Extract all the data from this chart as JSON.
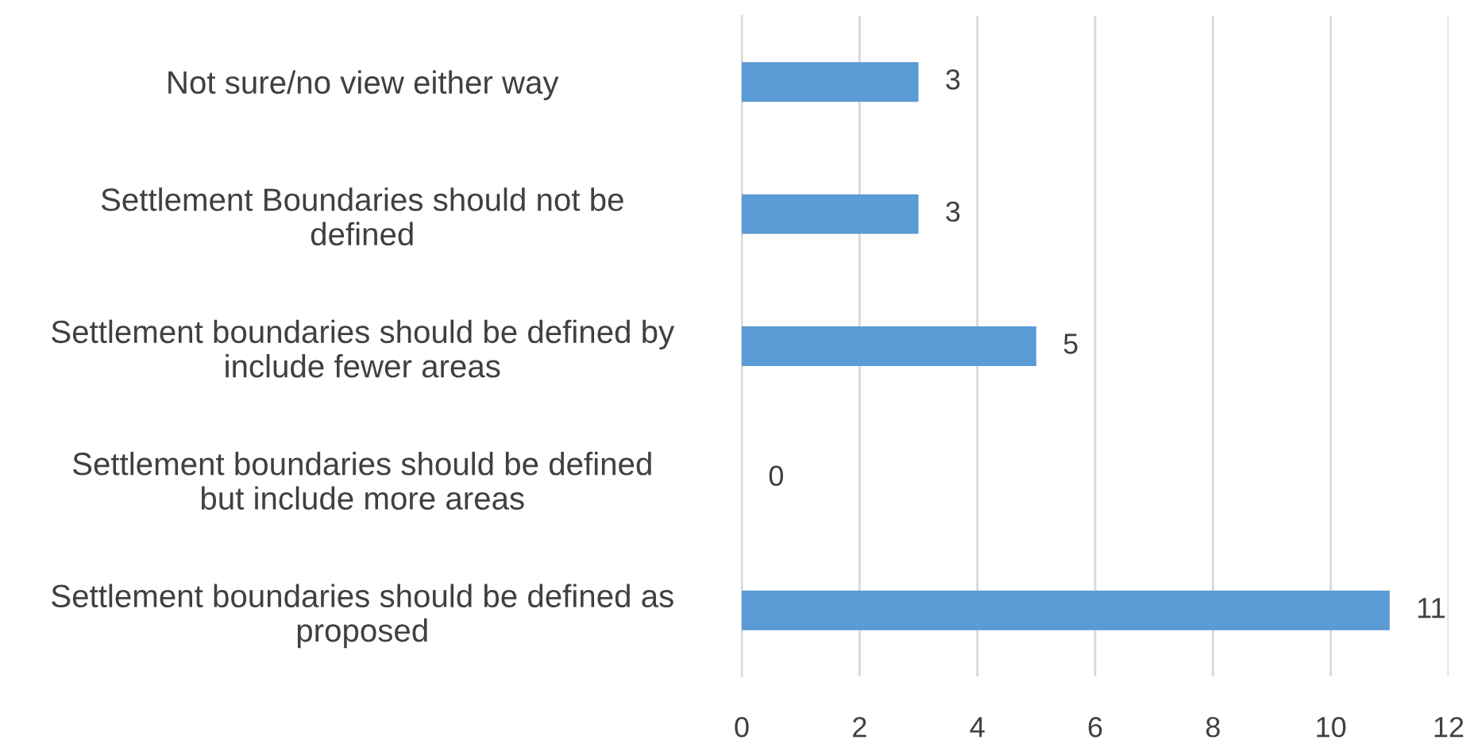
{
  "chart_data": {
    "type": "bar",
    "orientation": "horizontal",
    "categories": [
      "Not sure/no view either way",
      "Settlement Boundaries should not be\ndefined",
      "Settlement boundaries should be defined by\ninclude fewer areas",
      "Settlement boundaries should be defined\nbut include more areas",
      "Settlement boundaries should be defined as\nproposed"
    ],
    "values": [
      3,
      3,
      5,
      0,
      11
    ],
    "color": "#5b9bd5",
    "xlim": [
      0,
      12
    ],
    "xticks": [
      0,
      2,
      4,
      6,
      8,
      10,
      12
    ],
    "grid": "x",
    "data_labels": true
  }
}
